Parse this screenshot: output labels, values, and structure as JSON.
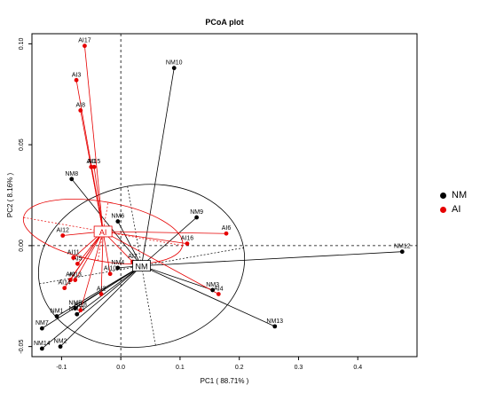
{
  "chart_data": {
    "type": "scatter",
    "title": "PCoA plot",
    "xlabel": "PC1 ( 88.71% )",
    "ylabel": "PC2 ( 8.16% )",
    "xlim": [
      -0.15,
      0.5
    ],
    "ylim": [
      -0.055,
      0.105
    ],
    "xticks": [
      "-0.1",
      "0.0",
      "0.1",
      "0.2",
      "0.3",
      "0.4"
    ],
    "yticks": [
      "-0.05",
      "0.00",
      "0.05",
      "0.10"
    ],
    "legend": "right",
    "grid": false,
    "groups": [
      {
        "name": "NM",
        "color": "#000000",
        "centroid": [
          0.035,
          -0.01
        ],
        "ellipse": {
          "rx": 0.175,
          "ry": 0.04,
          "angle": 10
        },
        "points": [
          {
            "label": "NM1",
            "x": -0.108,
            "y": -0.035
          },
          {
            "label": "NM2",
            "x": -0.102,
            "y": -0.05
          },
          {
            "label": "NM3",
            "x": 0.155,
            "y": -0.022
          },
          {
            "label": "NM4",
            "x": -0.005,
            "y": -0.011
          },
          {
            "label": "NM5",
            "x": -0.077,
            "y": -0.031
          },
          {
            "label": "NM6",
            "x": -0.005,
            "y": 0.012
          },
          {
            "label": "NM7",
            "x": -0.133,
            "y": -0.041
          },
          {
            "label": "NM8",
            "x": -0.083,
            "y": 0.033
          },
          {
            "label": "NM9",
            "x": 0.128,
            "y": 0.014
          },
          {
            "label": "NM10",
            "x": 0.09,
            "y": 0.088
          },
          {
            "label": "NM11",
            "x": -0.074,
            "y": -0.034
          },
          {
            "label": "NM12",
            "x": 0.475,
            "y": -0.003
          },
          {
            "label": "NM13",
            "x": 0.26,
            "y": -0.04
          },
          {
            "label": "NM14",
            "x": -0.133,
            "y": -0.051
          }
        ]
      },
      {
        "name": "AI",
        "color": "#e60000",
        "centroid": [
          -0.03,
          0.007
        ],
        "ellipse": {
          "rx": 0.05,
          "ry": 0.04,
          "angle": 80
        },
        "points": [
          {
            "label": "AI1",
            "x": -0.05,
            "y": 0.039
          },
          {
            "label": "AI2",
            "x": -0.033,
            "y": -0.024
          },
          {
            "label": "AI3",
            "x": -0.075,
            "y": 0.082
          },
          {
            "label": "AI4",
            "x": 0.165,
            "y": -0.024
          },
          {
            "label": "AI5",
            "x": -0.073,
            "y": -0.009
          },
          {
            "label": "AI6",
            "x": 0.178,
            "y": 0.006
          },
          {
            "label": "AI7",
            "x": 0.02,
            "y": -0.008
          },
          {
            "label": "AI8",
            "x": -0.068,
            "y": 0.067
          },
          {
            "label": "AI9",
            "x": -0.085,
            "y": -0.017
          },
          {
            "label": "AI10",
            "x": -0.018,
            "y": -0.014
          },
          {
            "label": "AI11",
            "x": -0.08,
            "y": -0.006
          },
          {
            "label": "AI12",
            "x": -0.098,
            "y": 0.005
          },
          {
            "label": "AI13",
            "x": -0.077,
            "y": -0.017
          },
          {
            "label": "AI14",
            "x": -0.095,
            "y": -0.021
          },
          {
            "label": "AI15",
            "x": -0.045,
            "y": 0.039
          },
          {
            "label": "AI16",
            "x": 0.112,
            "y": 0.001
          },
          {
            "label": "AI17",
            "x": -0.061,
            "y": 0.099
          },
          {
            "label": "AI18",
            "x": -0.068,
            "y": -0.032
          }
        ]
      }
    ]
  }
}
